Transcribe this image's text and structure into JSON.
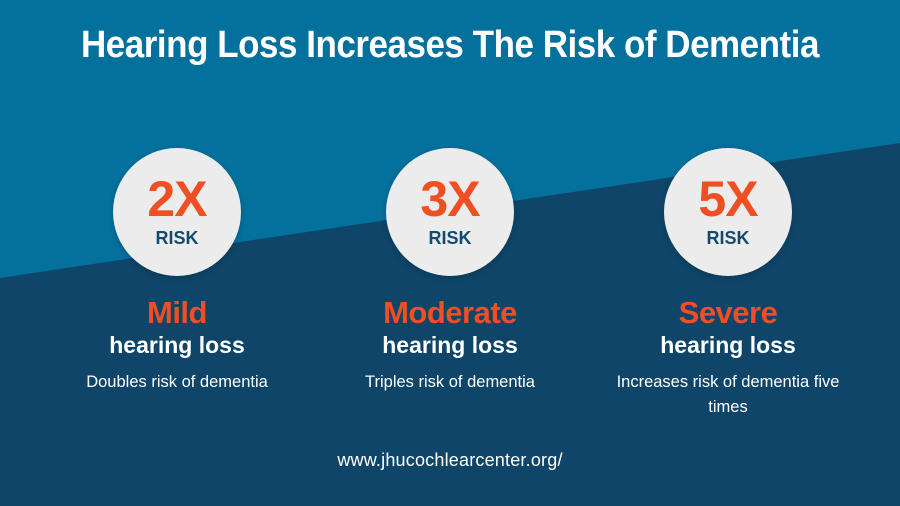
{
  "title": "Hearing Loss Increases The Risk of Dementia",
  "colors": {
    "background_top": "#04709c",
    "background_bottom": "#0e4568",
    "accent": "#f04e23",
    "badge": "#ececec",
    "badge_text": "#144a6e"
  },
  "levels": [
    {
      "multiplier": "2X",
      "risk": "RISK",
      "severity": "Mild",
      "subject": "hearing loss",
      "description": "Doubles risk of dementia"
    },
    {
      "multiplier": "3X",
      "risk": "RISK",
      "severity": "Moderate",
      "subject": "hearing loss",
      "description": "Triples risk of dementia"
    },
    {
      "multiplier": "5X",
      "risk": "RISK",
      "severity": "Severe",
      "subject": "hearing loss",
      "description": "Increases risk of dementia five times"
    }
  ],
  "footer": "www.jhucochlearcenter.org/"
}
